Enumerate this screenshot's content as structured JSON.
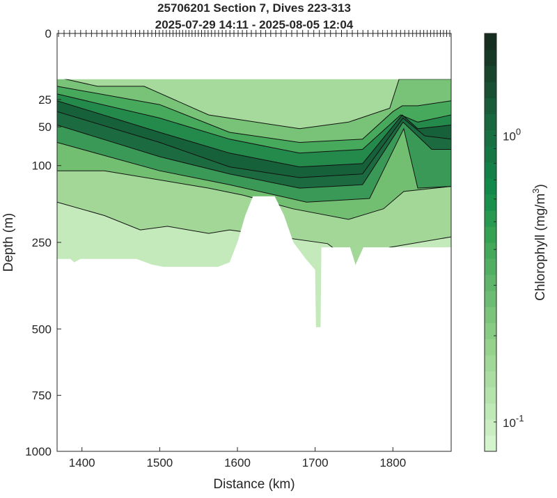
{
  "chart_data": {
    "type": "heatmap",
    "title": "25706201 Section 7, Dives 223-313",
    "subtitle": "2025-07-29 14:11 - 2025-08-05 12:04",
    "xlabel": "Distance (km)",
    "ylabel": "Depth (m)",
    "colorbar_label": "Chlorophyll (mg/m",
    "colorbar_label_sup": "3",
    "colorbar_label_end": ")",
    "xlim": [
      1368,
      1875
    ],
    "ylim": [
      0,
      1000
    ],
    "y_scale": "sqrt",
    "x_ticks": [
      "1400",
      "1500",
      "1600",
      "1700",
      "1800"
    ],
    "y_ticks": [
      "0",
      "25",
      "50",
      "100",
      "250",
      "500",
      "750",
      "1000"
    ],
    "color_scale": "log",
    "clim": [
      0.079,
      2.27
    ],
    "colorbar_ticks": [
      {
        "base": "10",
        "exp": "0",
        "value": 1
      },
      {
        "base": "10",
        "exp": "-1",
        "value": 0.1
      }
    ],
    "dives": {
      "first": 223,
      "last": 313
    },
    "data_top_depth": 12,
    "data_bottom_boundary": [
      [
        1368,
        291
      ],
      [
        1385,
        291
      ],
      [
        1390,
        300
      ],
      [
        1398,
        291
      ],
      [
        1470,
        291
      ],
      [
        1490,
        306
      ],
      [
        1505,
        312
      ],
      [
        1575,
        312
      ],
      [
        1590,
        300
      ],
      [
        1600,
        250
      ],
      [
        1610,
        190
      ],
      [
        1620,
        152
      ],
      [
        1648,
        152
      ],
      [
        1660,
        190
      ],
      [
        1672,
        250
      ],
      [
        1688,
        291
      ],
      [
        1700,
        320
      ],
      [
        1701,
        494
      ],
      [
        1707,
        494
      ],
      [
        1708,
        262
      ],
      [
        1745,
        262
      ],
      [
        1752,
        306
      ],
      [
        1762,
        262
      ],
      [
        1875,
        262
      ]
    ],
    "contours": [
      [
        [
          1368,
          11
        ],
        [
          1420,
          16
        ],
        [
          1480,
          16
        ],
        [
          1563,
          38
        ],
        [
          1680,
          52
        ],
        [
          1743,
          45
        ],
        [
          1796,
          32
        ],
        [
          1808,
          12
        ],
        [
          1875,
          12
        ]
      ],
      [
        [
          1368,
          16
        ],
        [
          1500,
          29
        ],
        [
          1590,
          56
        ],
        [
          1680,
          68
        ],
        [
          1761,
          64
        ],
        [
          1800,
          35
        ],
        [
          1812,
          30
        ],
        [
          1832,
          30
        ],
        [
          1875,
          26
        ]
      ],
      [
        [
          1368,
          21
        ],
        [
          1500,
          41
        ],
        [
          1590,
          64
        ],
        [
          1680,
          82
        ],
        [
          1761,
          77
        ],
        [
          1810,
          38
        ],
        [
          1832,
          45
        ],
        [
          1875,
          38
        ]
      ],
      [
        [
          1368,
          26
        ],
        [
          1500,
          56
        ],
        [
          1590,
          82
        ],
        [
          1680,
          102
        ],
        [
          1761,
          97
        ],
        [
          1812,
          38
        ],
        [
          1832,
          52
        ],
        [
          1875,
          48
        ]
      ],
      [
        [
          1368,
          35
        ],
        [
          1500,
          68
        ],
        [
          1590,
          102
        ],
        [
          1680,
          119
        ],
        [
          1761,
          113
        ],
        [
          1813,
          41
        ],
        [
          1841,
          60
        ],
        [
          1875,
          64
        ]
      ],
      [
        [
          1368,
          48
        ],
        [
          1500,
          87
        ],
        [
          1590,
          113
        ],
        [
          1680,
          137
        ],
        [
          1761,
          131
        ],
        [
          1813,
          45
        ],
        [
          1850,
          77
        ],
        [
          1875,
          77
        ]
      ],
      [
        [
          1368,
          68
        ],
        [
          1500,
          108
        ],
        [
          1590,
          131
        ],
        [
          1689,
          163
        ],
        [
          1770,
          156
        ],
        [
          1814,
          52
        ],
        [
          1832,
          137
        ],
        [
          1875,
          134
        ]
      ],
      [
        [
          1368,
          108
        ],
        [
          1429,
          108
        ],
        [
          1563,
          137
        ],
        [
          1608,
          150
        ],
        [
          1671,
          176
        ],
        [
          1743,
          198
        ],
        [
          1788,
          176
        ],
        [
          1814,
          143
        ],
        [
          1875,
          134
        ]
      ],
      [
        [
          1368,
          163
        ],
        [
          1429,
          190
        ],
        [
          1475,
          221
        ],
        [
          1510,
          213
        ],
        [
          1563,
          229
        ],
        [
          1590,
          221
        ],
        [
          1716,
          253
        ],
        [
          1752,
          306
        ],
        [
          1796,
          262
        ],
        [
          1875,
          237
        ]
      ]
    ],
    "band_colors": [
      "#a6da9c",
      "#78c377",
      "#47a95c",
      "#238a4b",
      "#17613a",
      "#1c6a3f",
      "#3a9956",
      "#73bf72",
      "#a2d798",
      "#c4e9ba"
    ]
  }
}
